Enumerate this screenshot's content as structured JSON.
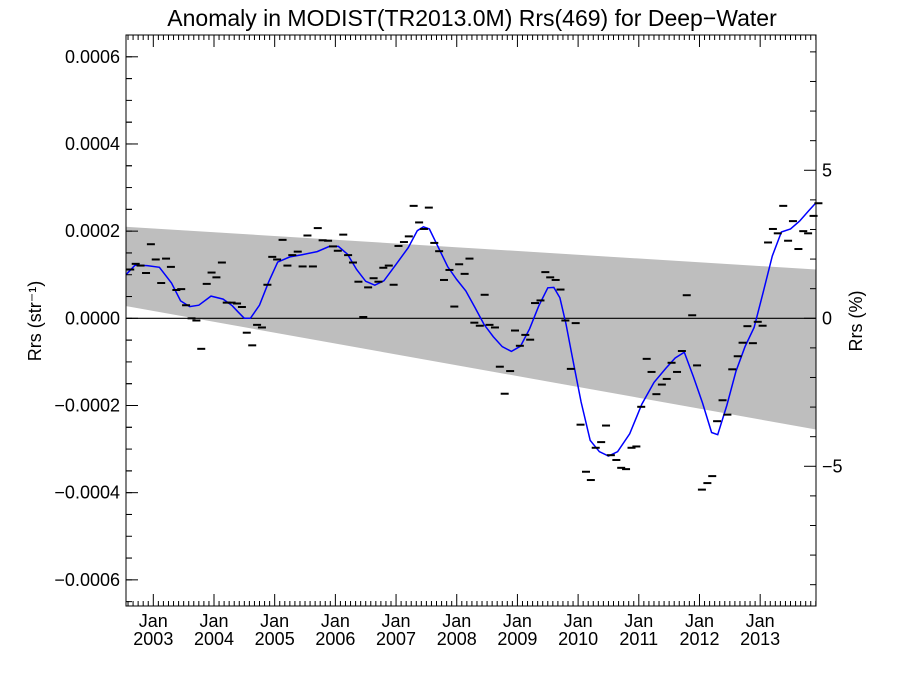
{
  "chart_data": {
    "type": "scatter",
    "title": "Anomaly in MODIST(TR2013.0M) Rrs(469) for Deep−Water",
    "ylabel_left": "Rrs (str⁻¹)",
    "ylabel_right": "Rrs (%)",
    "xlim": [
      2002.55,
      2013.92
    ],
    "ylim": [
      -0.00066,
      0.00065
    ],
    "y2lim": [
      -9.72,
      9.57
    ],
    "x_ticks": [
      {
        "x": 2003.0,
        "month": "Jan",
        "year": "2003"
      },
      {
        "x": 2004.0,
        "month": "Jan",
        "year": "2004"
      },
      {
        "x": 2005.0,
        "month": "Jan",
        "year": "2005"
      },
      {
        "x": 2006.0,
        "month": "Jan",
        "year": "2006"
      },
      {
        "x": 2007.0,
        "month": "Jan",
        "year": "2007"
      },
      {
        "x": 2008.0,
        "month": "Jan",
        "year": "2008"
      },
      {
        "x": 2009.0,
        "month": "Jan",
        "year": "2009"
      },
      {
        "x": 2010.0,
        "month": "Jan",
        "year": "2010"
      },
      {
        "x": 2011.0,
        "month": "Jan",
        "year": "2011"
      },
      {
        "x": 2012.0,
        "month": "Jan",
        "year": "2012"
      },
      {
        "x": 2013.0,
        "month": "Jan",
        "year": "2013"
      }
    ],
    "y_ticks": [
      {
        "v": 0.0006,
        "label": "0.0006"
      },
      {
        "v": 0.0004,
        "label": "0.0004"
      },
      {
        "v": 0.0002,
        "label": "0.0002"
      },
      {
        "v": 0.0,
        "label": "0.0000"
      },
      {
        "v": -0.0002,
        "label": "−0.0002"
      },
      {
        "v": -0.0004,
        "label": "−0.0004"
      },
      {
        "v": -0.0006,
        "label": "−0.0006"
      }
    ],
    "y2_ticks": [
      {
        "v": 5,
        "label": "5"
      },
      {
        "v": 0,
        "label": "0"
      },
      {
        "v": -5,
        "label": "−5"
      }
    ],
    "band": {
      "upper": [
        [
          2002.55,
          0.00021
        ],
        [
          2013.92,
          0.000112
        ]
      ],
      "lower": [
        [
          2002.55,
          2.8e-05
        ],
        [
          2013.92,
          -0.000255
        ]
      ]
    },
    "zero_line": 0.0,
    "series": [
      {
        "type": "markers",
        "points": [
          [
            2002.62,
            0.000112
          ],
          [
            2002.71,
            0.000125
          ],
          [
            2002.79,
            0.000121
          ],
          [
            2002.88,
            0.000104
          ],
          [
            2002.96,
            0.00017
          ],
          [
            2003.04,
            0.000135
          ],
          [
            2003.13,
            8.1e-05
          ],
          [
            2003.21,
            0.000137
          ],
          [
            2003.29,
            0.000118
          ],
          [
            2003.38,
            6.5e-05
          ],
          [
            2003.46,
            6.7e-05
          ],
          [
            2003.54,
            3e-05
          ],
          [
            2003.63,
            0.0
          ],
          [
            2003.71,
            -5e-06
          ],
          [
            2003.79,
            -7e-05
          ],
          [
            2003.88,
            7.9e-05
          ],
          [
            2003.96,
            0.000105
          ],
          [
            2004.04,
            9.4e-05
          ],
          [
            2004.13,
            0.000128
          ],
          [
            2004.21,
            3.6e-05
          ],
          [
            2004.29,
            3.6e-05
          ],
          [
            2004.38,
            3.4e-05
          ],
          [
            2004.46,
            2.6e-05
          ],
          [
            2004.54,
            -3.3e-05
          ],
          [
            2004.63,
            -6.2e-05
          ],
          [
            2004.71,
            -1.5e-05
          ],
          [
            2004.79,
            -2.1e-05
          ],
          [
            2004.88,
            7.7e-05
          ],
          [
            2004.96,
            0.000141
          ],
          [
            2005.04,
            0.000135
          ],
          [
            2005.13,
            0.00018
          ],
          [
            2005.21,
            0.000121
          ],
          [
            2005.29,
            0.000145
          ],
          [
            2005.38,
            0.000153
          ],
          [
            2005.46,
            0.000119
          ],
          [
            2005.54,
            0.00019
          ],
          [
            2005.63,
            0.000119
          ],
          [
            2005.71,
            0.000207
          ],
          [
            2005.79,
            0.000179
          ],
          [
            2005.88,
            0.000178
          ],
          [
            2005.96,
            0.000165
          ],
          [
            2006.04,
            0.000155
          ],
          [
            2006.13,
            0.000192
          ],
          [
            2006.21,
            0.000145
          ],
          [
            2006.29,
            0.000128
          ],
          [
            2006.38,
            8.4e-05
          ],
          [
            2006.46,
            3e-06
          ],
          [
            2006.54,
            7.1e-05
          ],
          [
            2006.63,
            9.2e-05
          ],
          [
            2006.71,
            8.4e-05
          ],
          [
            2006.79,
            0.000116
          ],
          [
            2006.88,
            0.000121
          ],
          [
            2006.96,
            7.7e-05
          ],
          [
            2007.04,
            0.000166
          ],
          [
            2007.13,
            0.000175
          ],
          [
            2007.21,
            0.000188
          ],
          [
            2007.29,
            0.000258
          ],
          [
            2007.38,
            0.00022
          ],
          [
            2007.46,
            0.000205
          ],
          [
            2007.54,
            0.000254
          ],
          [
            2007.63,
            0.000173
          ],
          [
            2007.71,
            0.000154
          ],
          [
            2007.79,
            8.8e-05
          ],
          [
            2007.88,
            0.000111
          ],
          [
            2007.96,
            2.7e-05
          ],
          [
            2008.04,
            0.000124
          ],
          [
            2008.13,
            0.000102
          ],
          [
            2008.21,
            0.000137
          ],
          [
            2008.29,
            -1e-05
          ],
          [
            2008.38,
            -1.7e-05
          ],
          [
            2008.46,
            5.4e-05
          ],
          [
            2008.54,
            -1.5e-05
          ],
          [
            2008.63,
            -2.1e-05
          ],
          [
            2008.71,
            -0.000111
          ],
          [
            2008.79,
            -0.000173
          ],
          [
            2008.88,
            -0.000121
          ],
          [
            2008.96,
            -2.8e-05
          ],
          [
            2009.04,
            -6.3e-05
          ],
          [
            2009.13,
            -3.8e-05
          ],
          [
            2009.21,
            -4.9e-05
          ],
          [
            2009.29,
            3.5e-05
          ],
          [
            2009.38,
            4.1e-05
          ],
          [
            2009.46,
            0.000106
          ],
          [
            2009.54,
            9.4e-05
          ],
          [
            2009.63,
            8.8e-05
          ],
          [
            2009.71,
            6.6e-05
          ],
          [
            2009.79,
            -5e-06
          ],
          [
            2009.88,
            -0.000116
          ],
          [
            2009.96,
            -1.1e-05
          ],
          [
            2010.04,
            -0.000244
          ],
          [
            2010.13,
            -0.000352
          ],
          [
            2010.21,
            -0.000371
          ],
          [
            2010.29,
            -0.000297
          ],
          [
            2010.38,
            -0.000284
          ],
          [
            2010.46,
            -0.000246
          ],
          [
            2010.54,
            -0.000314
          ],
          [
            2010.63,
            -0.000325
          ],
          [
            2010.71,
            -0.000343
          ],
          [
            2010.79,
            -0.000346
          ],
          [
            2010.88,
            -0.000297
          ],
          [
            2010.96,
            -0.000294
          ],
          [
            2011.04,
            -0.000203
          ],
          [
            2011.13,
            -9.3e-05
          ],
          [
            2011.21,
            -0.000123
          ],
          [
            2011.29,
            -0.000174
          ],
          [
            2011.38,
            -0.000152
          ],
          [
            2011.46,
            -0.000139
          ],
          [
            2011.54,
            -0.000102
          ],
          [
            2011.63,
            -0.000123
          ],
          [
            2011.71,
            -7.5e-05
          ],
          [
            2011.79,
            5.3e-05
          ],
          [
            2011.88,
            7e-06
          ],
          [
            2011.96,
            -0.000108
          ],
          [
            2012.04,
            -0.000393
          ],
          [
            2012.13,
            -0.000378
          ],
          [
            2012.21,
            -0.000362
          ],
          [
            2012.29,
            -0.000236
          ],
          [
            2012.38,
            -0.000188
          ],
          [
            2012.46,
            -0.000221
          ],
          [
            2012.54,
            -0.000117
          ],
          [
            2012.63,
            -8.7e-05
          ],
          [
            2012.71,
            -5.6e-05
          ],
          [
            2012.79,
            -1.8e-05
          ],
          [
            2012.88,
            -5.7e-05
          ],
          [
            2012.96,
            -8e-06
          ],
          [
            2013.04,
            -1.7e-05
          ],
          [
            2013.13,
            0.000174
          ],
          [
            2013.21,
            0.000205
          ],
          [
            2013.29,
            0.000195
          ],
          [
            2013.38,
            0.000258
          ],
          [
            2013.46,
            0.000178
          ],
          [
            2013.54,
            0.000223
          ],
          [
            2013.63,
            0.000159
          ],
          [
            2013.71,
            0.0002
          ],
          [
            2013.79,
            0.000195
          ],
          [
            2013.88,
            0.000235
          ],
          [
            2013.96,
            0.000264
          ]
        ]
      },
      {
        "type": "smoothed-line",
        "color": "#0000ff",
        "points": [
          [
            2002.55,
            0.0001
          ],
          [
            2002.7,
            0.000122
          ],
          [
            2002.9,
            0.000121
          ],
          [
            2003.1,
            0.000117
          ],
          [
            2003.3,
            8.1e-05
          ],
          [
            2003.45,
            4e-05
          ],
          [
            2003.6,
            2.7e-05
          ],
          [
            2003.75,
            3e-05
          ],
          [
            2003.95,
            5.1e-05
          ],
          [
            2004.15,
            4.4e-05
          ],
          [
            2004.3,
            2.9e-05
          ],
          [
            2004.4,
            1.4e-05
          ],
          [
            2004.5,
            0.0
          ],
          [
            2004.6,
            0.0
          ],
          [
            2004.75,
            3e-05
          ],
          [
            2004.9,
            8.3e-05
          ],
          [
            2005.05,
            0.000129
          ],
          [
            2005.25,
            0.000141
          ],
          [
            2005.45,
            0.000146
          ],
          [
            2005.7,
            0.000153
          ],
          [
            2005.9,
            0.000165
          ],
          [
            2006.05,
            0.000165
          ],
          [
            2006.2,
            0.000147
          ],
          [
            2006.35,
            0.000112
          ],
          [
            2006.5,
            8.5e-05
          ],
          [
            2006.65,
            7.6e-05
          ],
          [
            2006.8,
            8.6e-05
          ],
          [
            2007.0,
            0.000124
          ],
          [
            2007.2,
            0.000162
          ],
          [
            2007.35,
            0.000201
          ],
          [
            2007.45,
            0.00021
          ],
          [
            2007.55,
            0.000205
          ],
          [
            2007.7,
            0.000162
          ],
          [
            2007.85,
            0.000119
          ],
          [
            2008.0,
            8.9e-05
          ],
          [
            2008.15,
            6.3e-05
          ],
          [
            2008.3,
            2.5e-05
          ],
          [
            2008.45,
            -1.4e-05
          ],
          [
            2008.6,
            -4.2e-05
          ],
          [
            2008.75,
            -6.5e-05
          ],
          [
            2008.9,
            -7.6e-05
          ],
          [
            2009.05,
            -6.4e-05
          ],
          [
            2009.2,
            -2.4e-05
          ],
          [
            2009.35,
            2.8e-05
          ],
          [
            2009.5,
            7e-05
          ],
          [
            2009.6,
            7.1e-05
          ],
          [
            2009.7,
            4.7e-05
          ],
          [
            2009.8,
            -1.3e-05
          ],
          [
            2009.9,
            -8.5e-05
          ],
          [
            2010.05,
            -0.000192
          ],
          [
            2010.2,
            -0.00028
          ],
          [
            2010.35,
            -0.000306
          ],
          [
            2010.5,
            -0.000316
          ],
          [
            2010.65,
            -0.000306
          ],
          [
            2010.85,
            -0.000265
          ],
          [
            2011.05,
            -0.000197
          ],
          [
            2011.25,
            -0.000147
          ],
          [
            2011.45,
            -0.000114
          ],
          [
            2011.6,
            -9.1e-05
          ],
          [
            2011.75,
            -7.8e-05
          ],
          [
            2011.9,
            -0.000134
          ],
          [
            2012.05,
            -0.000194
          ],
          [
            2012.2,
            -0.000262
          ],
          [
            2012.3,
            -0.000267
          ],
          [
            2012.45,
            -0.0002
          ],
          [
            2012.6,
            -0.000122
          ],
          [
            2012.75,
            -6.5e-05
          ],
          [
            2012.9,
            -2.1e-05
          ],
          [
            2013.05,
            6e-05
          ],
          [
            2013.2,
            0.000143
          ],
          [
            2013.35,
            0.000198
          ],
          [
            2013.5,
            0.000205
          ],
          [
            2013.65,
            0.000223
          ],
          [
            2013.8,
            0.000247
          ],
          [
            2013.92,
            0.000265
          ]
        ]
      }
    ]
  }
}
